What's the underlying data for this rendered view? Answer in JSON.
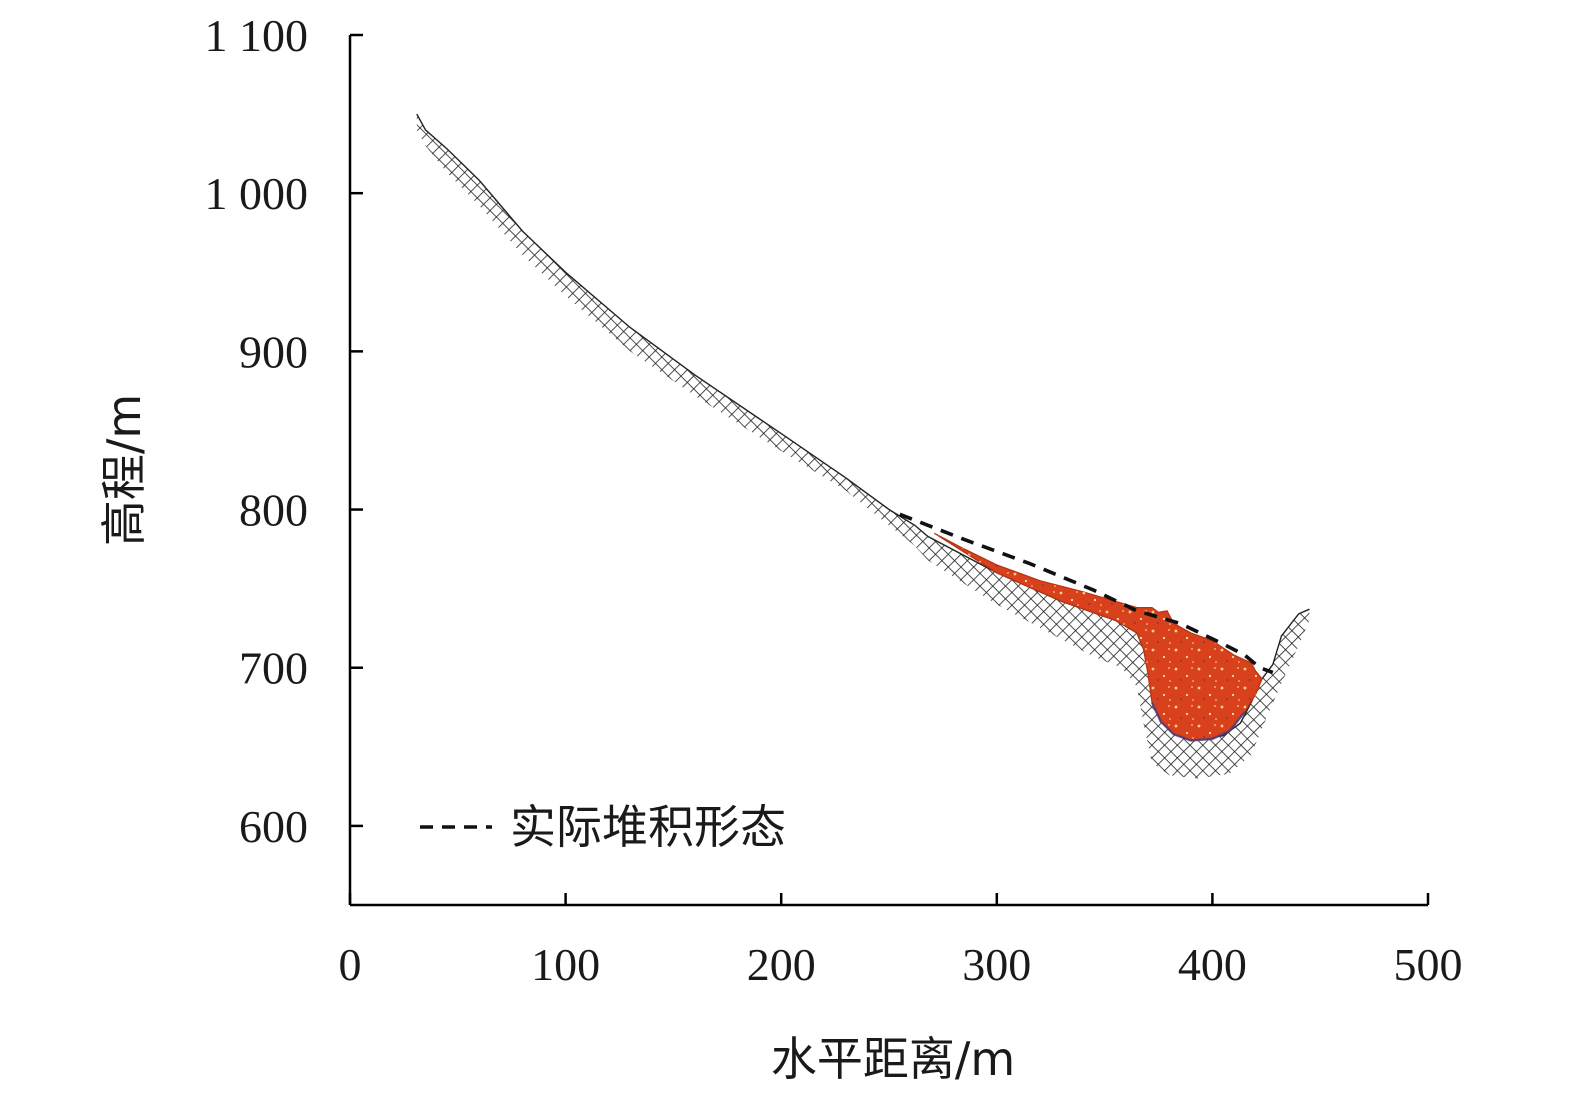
{
  "chart_data": {
    "type": "area",
    "xlabel": "水平距离/m",
    "ylabel": "高程/m",
    "xlim": [
      0,
      500
    ],
    "ylim": [
      550,
      1100
    ],
    "x_ticks": [
      {
        "value": 0,
        "label": "0"
      },
      {
        "value": 100,
        "label": "100"
      },
      {
        "value": 200,
        "label": "200"
      },
      {
        "value": 300,
        "label": "300"
      },
      {
        "value": 400,
        "label": "400"
      },
      {
        "value": 500,
        "label": "500"
      }
    ],
    "y_ticks": [
      {
        "value": 600,
        "label": "600"
      },
      {
        "value": 700,
        "label": "700"
      },
      {
        "value": 800,
        "label": "800"
      },
      {
        "value": 900,
        "label": "900"
      },
      {
        "value": 1000,
        "label": "1 000"
      },
      {
        "value": 1100,
        "label": "1 100"
      }
    ],
    "grid": false,
    "legend": {
      "placement": "bottom-left",
      "entries": [
        {
          "label": "实际堆积形态",
          "style": "dashed"
        }
      ]
    },
    "colors": {
      "deposit": "#d9401c",
      "deposit_speckle": "#f3d18a",
      "deposit_dark": "#5a2a6a",
      "hatch": "#222222",
      "dashed_line": "#111111",
      "axis": "#000000"
    },
    "terrain": {
      "upper": [
        [
          31,
          1050
        ],
        [
          35,
          1040
        ],
        [
          45,
          1028
        ],
        [
          60,
          1008
        ],
        [
          80,
          976
        ],
        [
          100,
          950
        ],
        [
          130,
          915
        ],
        [
          160,
          885
        ],
        [
          200,
          848
        ],
        [
          230,
          820
        ],
        [
          250,
          800
        ],
        [
          262,
          790
        ],
        [
          268,
          783
        ],
        [
          300,
          760
        ],
        [
          330,
          742
        ],
        [
          355,
          730
        ],
        [
          365,
          722
        ],
        [
          368,
          712
        ],
        [
          372,
          695
        ],
        [
          378,
          675
        ],
        [
          385,
          662
        ],
        [
          395,
          655
        ],
        [
          405,
          657
        ],
        [
          413,
          665
        ],
        [
          418,
          678
        ],
        [
          423,
          693
        ],
        [
          428,
          702
        ],
        [
          432,
          720
        ],
        [
          440,
          734
        ],
        [
          445,
          737
        ]
      ],
      "lower": [
        [
          31,
          1040
        ],
        [
          35,
          1030
        ],
        [
          45,
          1013
        ],
        [
          60,
          992
        ],
        [
          80,
          961
        ],
        [
          100,
          935
        ],
        [
          130,
          900
        ],
        [
          160,
          872
        ],
        [
          200,
          837
        ],
        [
          230,
          812
        ],
        [
          250,
          790
        ],
        [
          262,
          777
        ],
        [
          268,
          768
        ],
        [
          300,
          740
        ],
        [
          330,
          718
        ],
        [
          345,
          707
        ],
        [
          358,
          700
        ],
        [
          365,
          688
        ],
        [
          368,
          665
        ],
        [
          372,
          640
        ],
        [
          380,
          632
        ],
        [
          393,
          630
        ],
        [
          408,
          633
        ],
        [
          418,
          645
        ],
        [
          425,
          668
        ],
        [
          432,
          690
        ],
        [
          440,
          714
        ],
        [
          445,
          730
        ]
      ]
    },
    "deposit_area": [
      [
        271,
        785
      ],
      [
        285,
        775
      ],
      [
        300,
        765
      ],
      [
        320,
        755
      ],
      [
        340,
        748
      ],
      [
        355,
        742
      ],
      [
        365,
        738
      ],
      [
        372,
        738
      ],
      [
        375,
        735
      ],
      [
        379,
        736
      ],
      [
        382,
        728
      ],
      [
        390,
        722
      ],
      [
        400,
        717
      ],
      [
        410,
        708
      ],
      [
        418,
        703
      ],
      [
        420,
        698
      ],
      [
        423,
        693
      ],
      [
        420,
        683
      ],
      [
        415,
        672
      ],
      [
        408,
        660
      ],
      [
        400,
        655
      ],
      [
        390,
        654
      ],
      [
        382,
        658
      ],
      [
        376,
        666
      ],
      [
        372,
        678
      ],
      [
        370,
        697
      ],
      [
        368,
        712
      ],
      [
        365,
        722
      ],
      [
        355,
        730
      ],
      [
        330,
        742
      ],
      [
        300,
        760
      ],
      [
        271,
        785
      ]
    ],
    "actual_profile": [
      [
        255,
        797
      ],
      [
        285,
        781
      ],
      [
        315,
        766
      ],
      [
        345,
        749
      ],
      [
        365,
        736
      ],
      [
        385,
        728
      ],
      [
        405,
        715
      ],
      [
        415,
        708
      ],
      [
        422,
        700
      ],
      [
        428,
        697
      ]
    ]
  }
}
